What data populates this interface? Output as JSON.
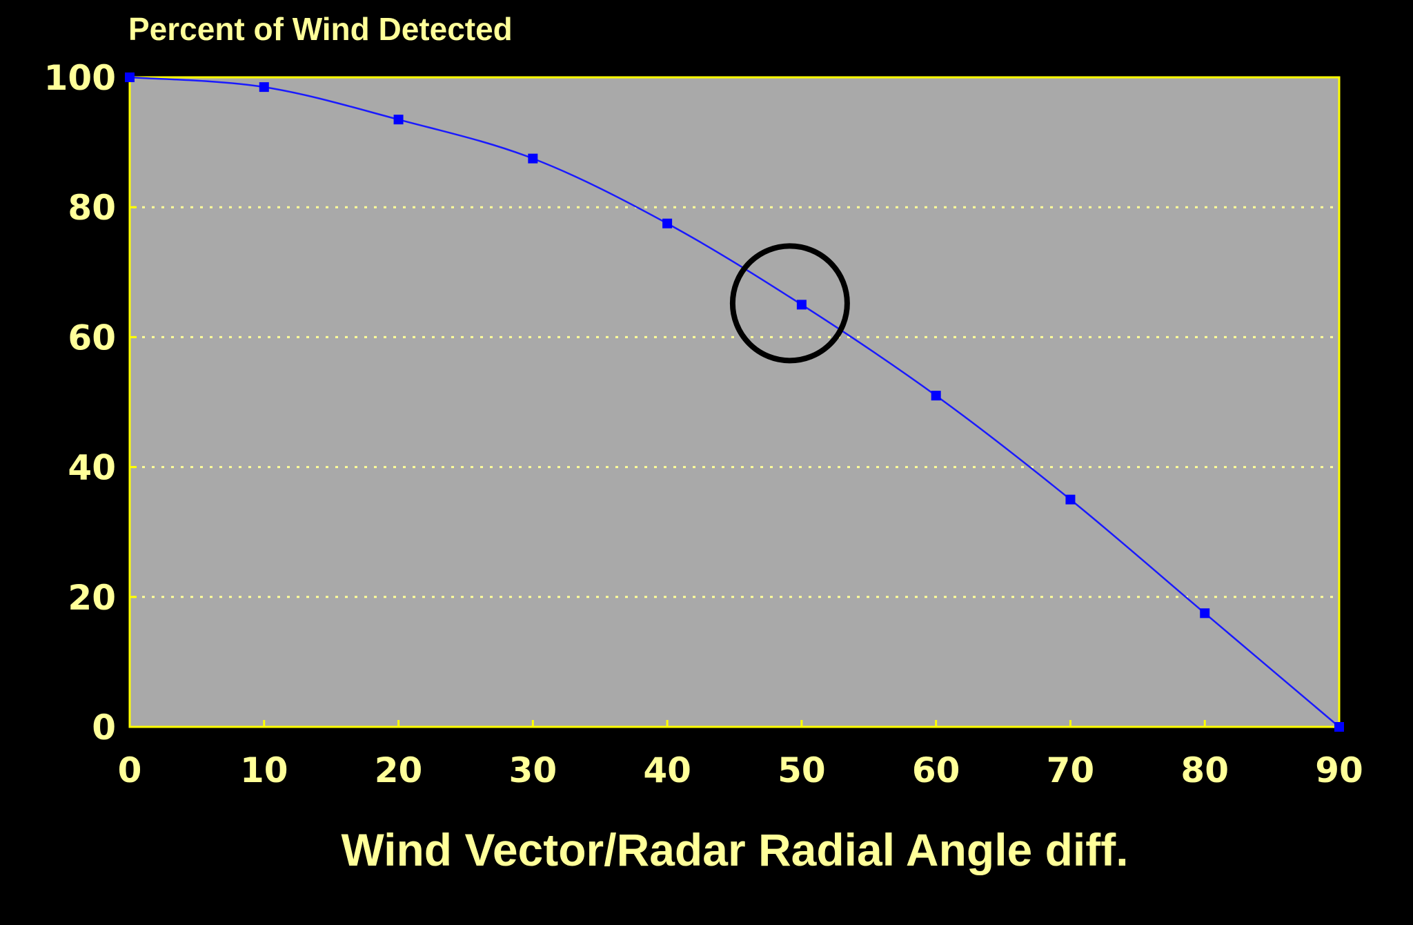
{
  "chart_data": {
    "type": "line",
    "ylabel": "Percent of Wind Detected",
    "xlabel": "Wind Vector/Radar Radial Angle diff.",
    "x": [
      0,
      10,
      20,
      30,
      40,
      50,
      60,
      70,
      80,
      90
    ],
    "series": [
      {
        "values": [
          100,
          98.5,
          93.5,
          87.5,
          77.5,
          65,
          51,
          35,
          17.5,
          0
        ]
      }
    ],
    "xlim": [
      0,
      90
    ],
    "ylim": [
      0,
      100
    ],
    "xticks": [
      "0",
      "10",
      "20",
      "30",
      "40",
      "50",
      "60",
      "70",
      "80",
      "90"
    ],
    "yticks": [
      "0",
      "20",
      "40",
      "60",
      "80",
      "100"
    ],
    "grid": {
      "horizontal": true,
      "vertical": false,
      "style": "dotted"
    },
    "highlight": {
      "shape": "circle",
      "x": 50,
      "y": 65
    },
    "colors": {
      "background": "#000000",
      "plot_area": "#a9a9a9",
      "frame": "#ffff00",
      "gridline": "#ffff99",
      "text": "#ffff99",
      "series_line": "#1a1aff",
      "series_marker": "#0000ff",
      "highlight_ring": "#000000"
    }
  }
}
